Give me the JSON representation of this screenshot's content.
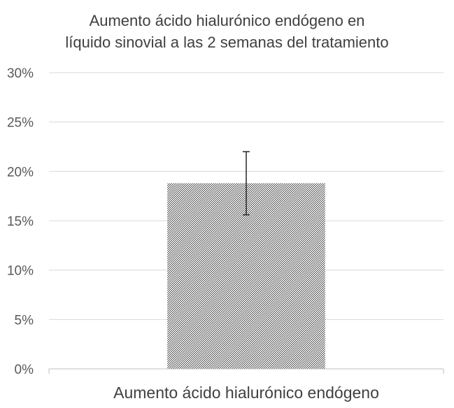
{
  "chart_data": {
    "type": "bar",
    "title_lines": [
      "Aumento ácido hialurónico endógeno en",
      "líquido sinovial a las 2 semanas del tratamiento"
    ],
    "categories": [
      "Aumento ácido hialurónico endógeno"
    ],
    "values": [
      18.8
    ],
    "error": {
      "upper": 22.0,
      "lower": 15.6
    },
    "ylim": [
      0,
      30
    ],
    "yticks": [
      0,
      5,
      10,
      15,
      20,
      25,
      30
    ],
    "ytick_labels": [
      "0%",
      "5%",
      "10%",
      "15%",
      "20%",
      "25%",
      "30%"
    ],
    "grid": true,
    "legend": "none",
    "colors": {
      "bar_pattern_dark": "#3a3a3a",
      "bar_pattern_light": "#f2f2f2",
      "grid": "#d9d9d9",
      "axis": "#bfbfbf",
      "error_bar": "#262626"
    }
  }
}
